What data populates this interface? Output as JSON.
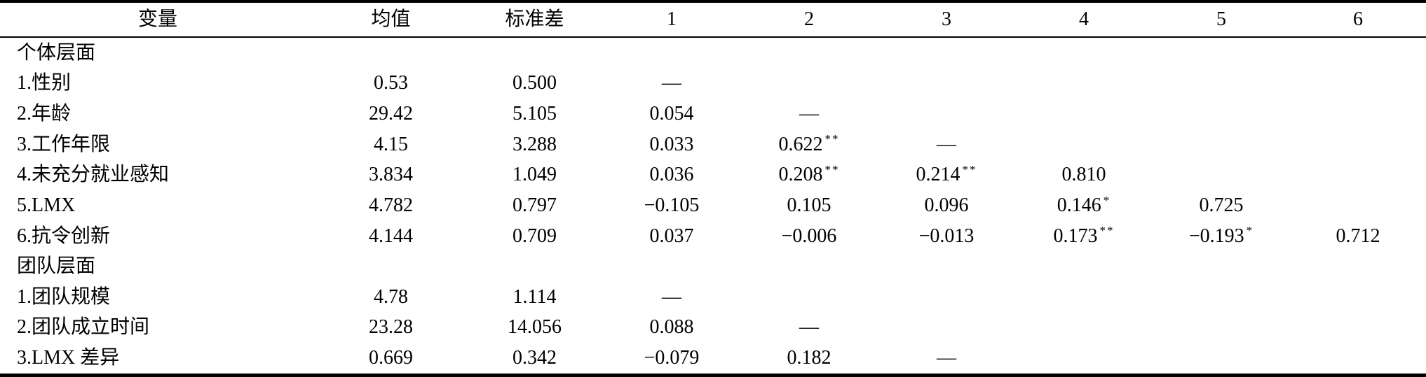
{
  "table": {
    "headers": [
      "变量",
      "均值",
      "标准差",
      "1",
      "2",
      "3",
      "4",
      "5",
      "6"
    ],
    "rows": [
      {
        "type": "section",
        "label": "个体层面"
      },
      {
        "type": "data",
        "label": "1.性别",
        "cells": [
          "0.53",
          "0.500",
          "—",
          "",
          "",
          "",
          "",
          ""
        ]
      },
      {
        "type": "data",
        "label": "2.年龄",
        "cells": [
          "29.42",
          "5.105",
          "0.054",
          "—",
          "",
          "",
          "",
          ""
        ]
      },
      {
        "type": "data",
        "label": "3.工作年限",
        "cells": [
          "4.15",
          "3.288",
          "0.033",
          "0.622|**",
          "—",
          "",
          "",
          ""
        ]
      },
      {
        "type": "data",
        "label": "4.未充分就业感知",
        "cells": [
          "3.834",
          "1.049",
          "0.036",
          "0.208|**",
          "0.214|**",
          "0.810",
          "",
          ""
        ]
      },
      {
        "type": "data",
        "label": "5.LMX",
        "cells": [
          "4.782",
          "0.797",
          "−0.105",
          "0.105",
          "0.096",
          "0.146|*",
          "0.725",
          ""
        ]
      },
      {
        "type": "data",
        "label": "6.抗令创新",
        "cells": [
          "4.144",
          "0.709",
          "0.037",
          "−0.006",
          "−0.013",
          "0.173|**",
          "−0.193|*",
          "0.712"
        ]
      },
      {
        "type": "section",
        "label": "团队层面"
      },
      {
        "type": "data",
        "label": "1.团队规模",
        "cells": [
          "4.78",
          "1.114",
          "—",
          "",
          "",
          "",
          "",
          ""
        ]
      },
      {
        "type": "data",
        "label": "2.团队成立时间",
        "cells": [
          "23.28",
          "14.056",
          "0.088",
          "—",
          "",
          "",
          "",
          ""
        ]
      },
      {
        "type": "data",
        "label": "3.LMX 差异",
        "cells": [
          "0.669",
          "0.342",
          "−0.079",
          "0.182",
          "—",
          "",
          "",
          ""
        ]
      }
    ]
  }
}
